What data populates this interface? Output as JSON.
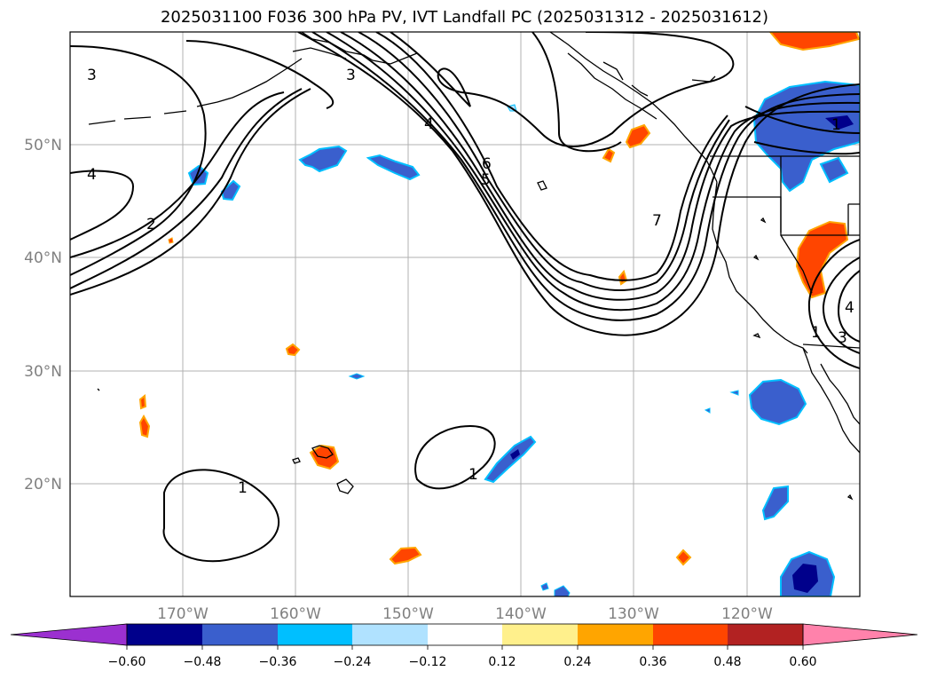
{
  "title": "2025031100 F036 300 hPa PV, IVT Landfall PC (2025031312 - 2025031612)",
  "map": {
    "lon_ticks": [
      "170°W",
      "160°W",
      "150°W",
      "140°W",
      "130°W",
      "120°W"
    ],
    "lat_ticks": [
      "50°N",
      "40°N",
      "30°N",
      "20°N"
    ],
    "contour_labels": [
      "3",
      "4",
      "2",
      "3",
      "4",
      "5",
      "6",
      "7",
      "1",
      "1",
      "1",
      "1",
      "3",
      "4"
    ]
  },
  "colorbar": {
    "colors": [
      "#9b30d0",
      "#00008b",
      "#3a5fcd",
      "#00bfff",
      "#b0e2ff",
      "#ffffff",
      "#fff08c",
      "#ffa500",
      "#ff4500",
      "#b22222",
      "#ff82ab"
    ],
    "tick_labels": [
      "−0.60",
      "−0.48",
      "−0.36",
      "−0.24",
      "−0.12",
      "0.12",
      "0.24",
      "0.36",
      "0.48",
      "0.60"
    ]
  }
}
